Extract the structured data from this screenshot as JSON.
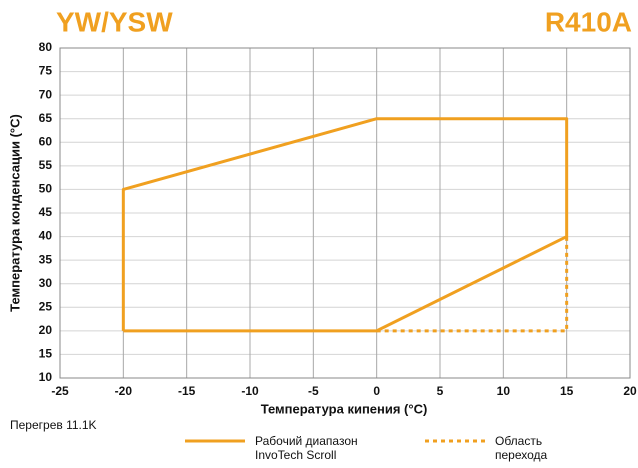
{
  "chart_data": {
    "type": "line",
    "title": "YW/YSW",
    "subtitle": "R410A",
    "xlabel": "Температура кипения (°C)",
    "ylabel": "Температура конденсации (°C)",
    "annotation": "Перегрев 11.1K",
    "xlim": [
      -25,
      20
    ],
    "xticks": [
      -25,
      -20,
      -15,
      -10,
      -5,
      0,
      5,
      10,
      15,
      20
    ],
    "ylim": [
      10,
      80
    ],
    "yticks": [
      10,
      15,
      20,
      25,
      30,
      35,
      40,
      45,
      50,
      55,
      60,
      65,
      70,
      75,
      80
    ],
    "grid": true,
    "series": [
      {
        "name": "Рабочий диапазон InvoTech Scroll",
        "color": "#f0a020",
        "style": "solid",
        "x": [
          -20,
          -20,
          0,
          15,
          15,
          0,
          -20
        ],
        "values": [
          20,
          50,
          65,
          65,
          40,
          20,
          20
        ]
      },
      {
        "name": "Область перехода",
        "color": "#f0a020",
        "style": "dashed",
        "x": [
          0,
          15,
          15
        ],
        "values": [
          20,
          20,
          40
        ]
      }
    ]
  }
}
